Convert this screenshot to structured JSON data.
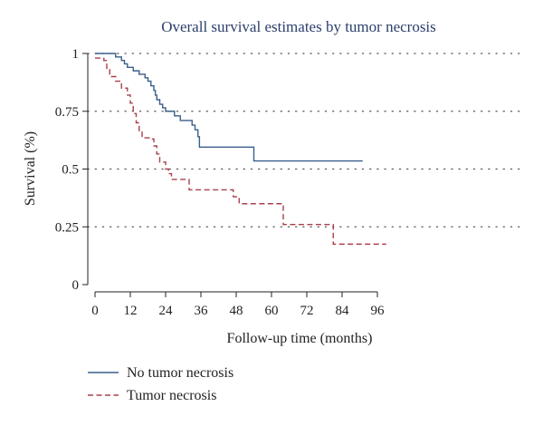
{
  "chart_data": {
    "type": "line",
    "title": "Overall survival estimates by tumor necrosis",
    "xlabel": "Follow-up time (months)",
    "ylabel": "Survival (%)",
    "xlim": [
      0,
      99
    ],
    "ylim": [
      0,
      1
    ],
    "x_ticks": [
      0,
      12,
      24,
      36,
      48,
      60,
      72,
      84,
      96
    ],
    "y_ticks": [
      0,
      0.25,
      0.5,
      0.75,
      1
    ],
    "y_tick_labels": [
      "0",
      "0.25",
      "0.5",
      "0.75",
      "1"
    ],
    "grid": "horizontal dotted",
    "legend_position": "bottom-left",
    "colors": {
      "title": "#2b3f6b",
      "axis": "#222222",
      "grid": "#555555",
      "text": "#222222"
    },
    "series": [
      {
        "name": "No tumor necrosis",
        "color": "#3a5f8a",
        "dash": "solid",
        "steps": [
          [
            0,
            1.0
          ],
          [
            7,
            0.985
          ],
          [
            9,
            0.97
          ],
          [
            10,
            0.955
          ],
          [
            11,
            0.94
          ],
          [
            13,
            0.925
          ],
          [
            15,
            0.91
          ],
          [
            17,
            0.895
          ],
          [
            18,
            0.88
          ],
          [
            19,
            0.86
          ],
          [
            20,
            0.84
          ],
          [
            20.5,
            0.82
          ],
          [
            21,
            0.8
          ],
          [
            22,
            0.78
          ],
          [
            23,
            0.765
          ],
          [
            24,
            0.75
          ],
          [
            27,
            0.73
          ],
          [
            29,
            0.71
          ],
          [
            33,
            0.69
          ],
          [
            34,
            0.67
          ],
          [
            35,
            0.64
          ],
          [
            35.5,
            0.595
          ],
          [
            54,
            0.535
          ],
          [
            91,
            0.535
          ]
        ]
      },
      {
        "name": "Tumor necrosis",
        "color": "#a8404a",
        "dash": "dashed",
        "steps": [
          [
            0,
            0.98
          ],
          [
            3,
            0.97
          ],
          [
            4,
            0.93
          ],
          [
            5,
            0.9
          ],
          [
            7,
            0.88
          ],
          [
            9,
            0.85
          ],
          [
            11,
            0.82
          ],
          [
            12,
            0.785
          ],
          [
            13,
            0.74
          ],
          [
            14,
            0.7
          ],
          [
            15,
            0.66
          ],
          [
            16,
            0.635
          ],
          [
            19,
            0.63
          ],
          [
            20,
            0.6
          ],
          [
            21,
            0.565
          ],
          [
            22,
            0.53
          ],
          [
            24,
            0.5
          ],
          [
            25,
            0.48
          ],
          [
            26,
            0.455
          ],
          [
            32,
            0.41
          ],
          [
            41,
            0.41
          ],
          [
            47,
            0.38
          ],
          [
            49,
            0.35
          ],
          [
            63,
            0.35
          ],
          [
            64,
            0.26
          ],
          [
            81,
            0.175
          ],
          [
            99,
            0.175
          ]
        ]
      }
    ]
  }
}
